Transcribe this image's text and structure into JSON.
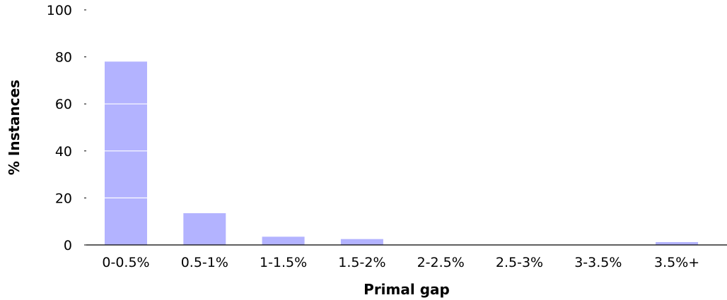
{
  "chart_data": {
    "type": "bar",
    "title": "",
    "xlabel": "Primal gap",
    "ylabel": "% Instances",
    "categories": [
      "0-0.5%",
      "0.5-1%",
      "1-1.5%",
      "1.5-2%",
      "2-2.5%",
      "2.5-3%",
      "3-3.5%",
      "3.5%+"
    ],
    "values": [
      78,
      13.5,
      3.5,
      2.5,
      0,
      0,
      0,
      1.2
    ],
    "ylim": [
      0,
      100
    ],
    "yticks": [
      "0",
      "20",
      "40",
      "60",
      "80",
      "100"
    ],
    "grid": "horizontal lines drawn over bars",
    "legend": "none",
    "bar_color": "#b3b3ff"
  }
}
